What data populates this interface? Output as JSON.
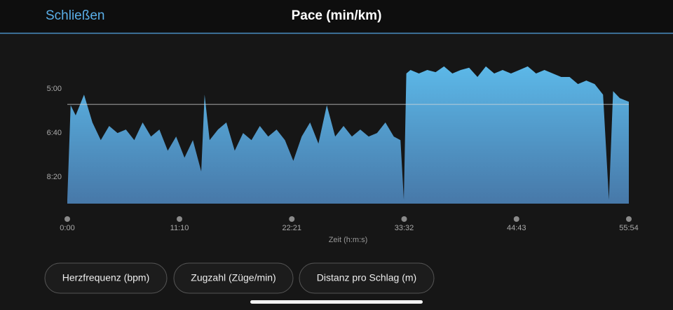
{
  "header": {
    "close": "Schließen",
    "title": "Pace (min/km)"
  },
  "chart_data": {
    "type": "area",
    "x_label": "Zeit (h:m:s)",
    "x": [
      0,
      20,
      50,
      100,
      150,
      200,
      250,
      300,
      350,
      400,
      450,
      500,
      550,
      600,
      650,
      700,
      750,
      800,
      820,
      850,
      900,
      950,
      1000,
      1050,
      1100,
      1150,
      1200,
      1250,
      1300,
      1350,
      1400,
      1450,
      1500,
      1550,
      1600,
      1650,
      1700,
      1750,
      1800,
      1850,
      1900,
      1950,
      1990,
      2010,
      2025,
      2050,
      2100,
      2150,
      2200,
      2250,
      2300,
      2350,
      2400,
      2450,
      2500,
      2550,
      2600,
      2650,
      2700,
      2750,
      2800,
      2850,
      2900,
      2950,
      3000,
      3050,
      3100,
      3150,
      3200,
      3235,
      3260,
      3300,
      3354
    ],
    "values": [
      551,
      337,
      360,
      313,
      376,
      416,
      384,
      400,
      392,
      416,
      376,
      408,
      392,
      440,
      408,
      456,
      416,
      487,
      313,
      416,
      392,
      376,
      440,
      400,
      416,
      384,
      408,
      392,
      416,
      463,
      408,
      376,
      424,
      337,
      408,
      384,
      408,
      392,
      408,
      400,
      376,
      408,
      416,
      551,
      265,
      257,
      265,
      257,
      262,
      249,
      265,
      257,
      252,
      273,
      249,
      265,
      257,
      265,
      257,
      249,
      265,
      257,
      265,
      273,
      273,
      289,
      281,
      289,
      313,
      551,
      305,
      321,
      329
    ],
    "color_top": "#5cb8e8",
    "color_bottom": "#4778a8",
    "reference_line": 335,
    "xlim": [
      0,
      3354
    ],
    "xticks": [
      {
        "value": 0,
        "label": "0:00"
      },
      {
        "value": 670,
        "label": "11:10"
      },
      {
        "value": 1341,
        "label": "22:21"
      },
      {
        "value": 2012,
        "label": "33:32"
      },
      {
        "value": 2683,
        "label": "44:43"
      },
      {
        "value": 3354,
        "label": "55:54"
      }
    ],
    "ylim": [
      560,
      200
    ],
    "yticks": [
      {
        "value": 300,
        "label": "5:00"
      },
      {
        "value": 400,
        "label": "6:40"
      },
      {
        "value": 500,
        "label": "8:20"
      }
    ]
  },
  "buttons": [
    "Herzfrequenz (bpm)",
    "Zugzahl (Züge/min)",
    "Distanz pro Schlag (m)"
  ]
}
